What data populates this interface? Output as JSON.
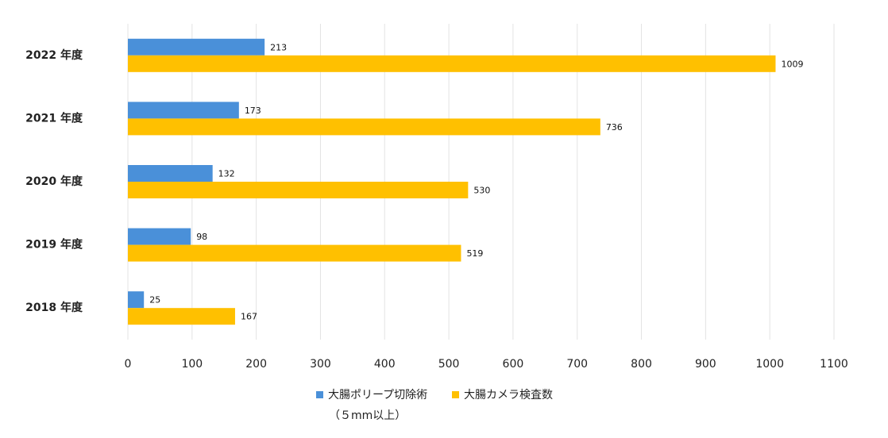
{
  "chart_data": {
    "type": "bar",
    "orientation": "horizontal",
    "categories": [
      "2022 年度",
      "2021 年度",
      "2020 年度",
      "2019 年度",
      "2018 年度"
    ],
    "series": [
      {
        "name": "大腸ポリープ切除術",
        "name_sub": "（５mm以上）",
        "color": "#4A90D9",
        "values": [
          213,
          173,
          132,
          98,
          25
        ]
      },
      {
        "name": "大腸カメラ検査数",
        "color": "#FFC000",
        "values": [
          1009,
          736,
          530,
          519,
          167
        ]
      }
    ],
    "xlim": [
      0,
      1100
    ],
    "xticks": [
      0,
      100,
      200,
      300,
      400,
      500,
      600,
      700,
      800,
      900,
      1000,
      1100
    ],
    "grid": true,
    "legend_position": "bottom"
  }
}
